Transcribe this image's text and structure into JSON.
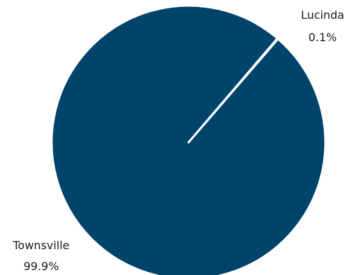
{
  "chart_data": {
    "type": "pie",
    "categories": [
      "Lucinda",
      "Townsville"
    ],
    "values": [
      0.1,
      99.9
    ],
    "value_labels": [
      "0.1%",
      "99.9%"
    ],
    "slice_color": "#00436b",
    "separator_color": "#ffffff"
  }
}
